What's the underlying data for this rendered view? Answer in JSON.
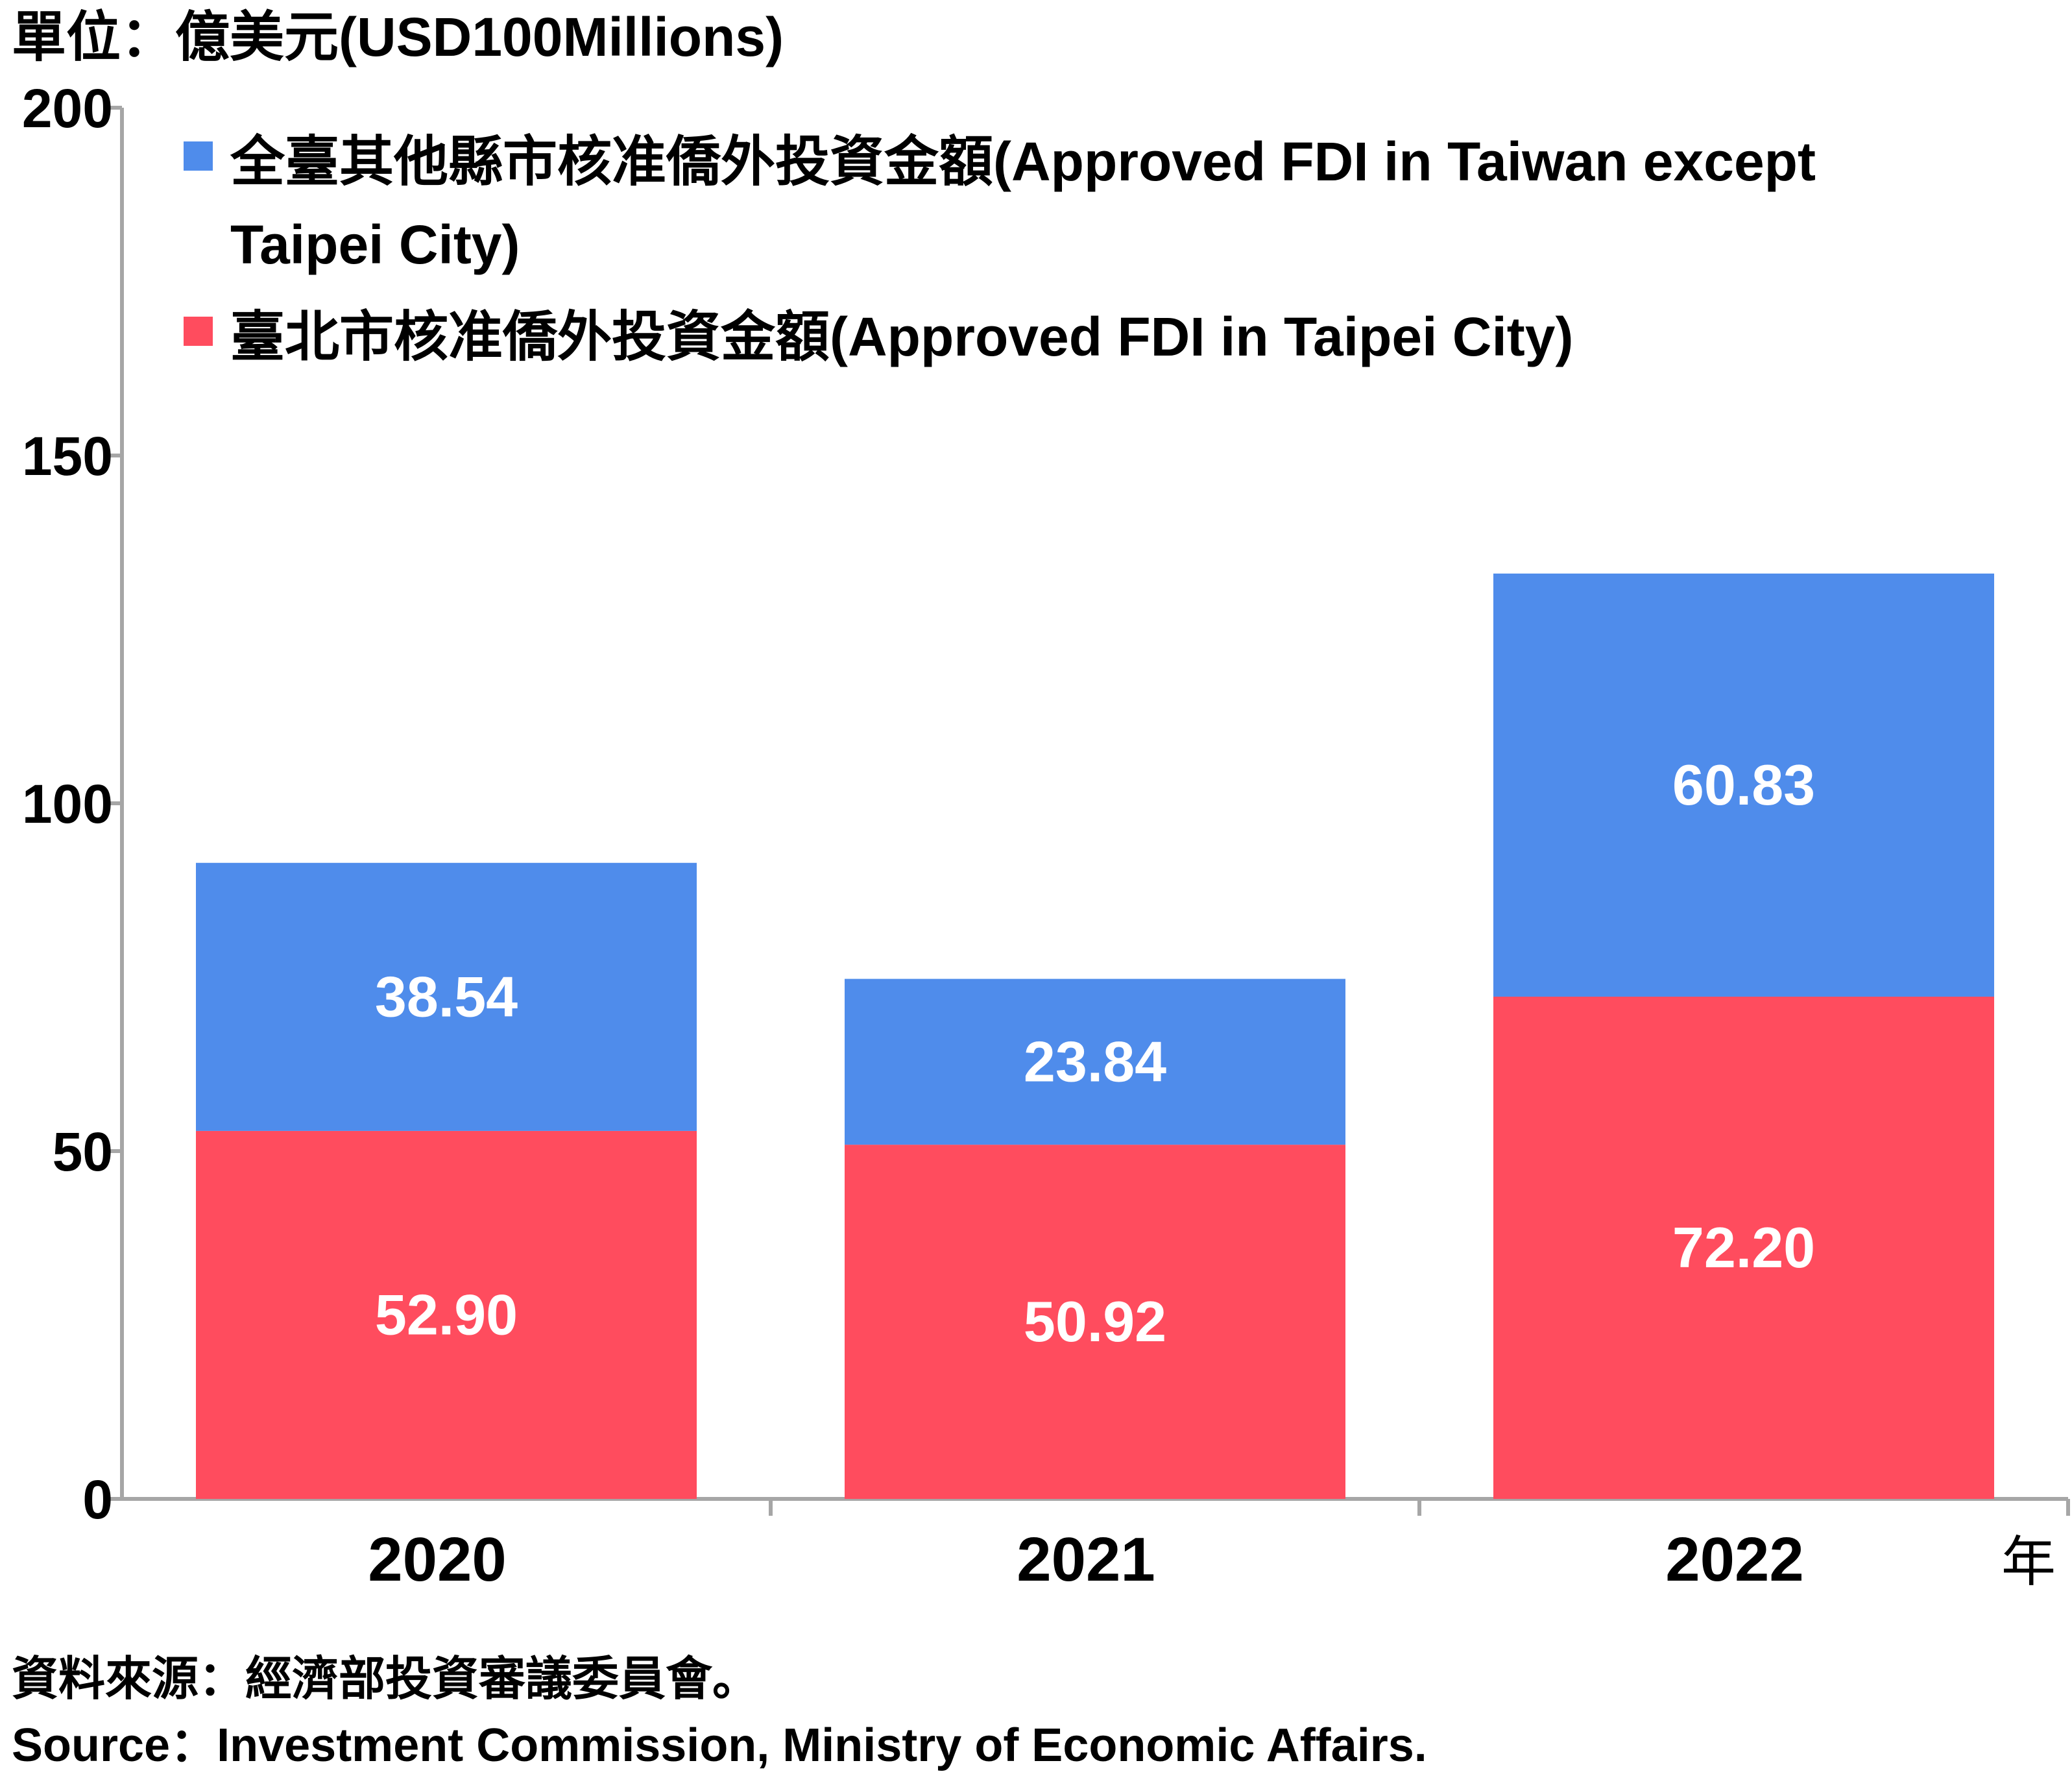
{
  "unit_label": "單位：億美元(USD100Millions)",
  "year_suffix": "年",
  "source_zh": "資料來源：經濟部投資審議委員會。",
  "source_en": "Source：Investment Commission, Ministry of Economic Affairs.",
  "chart_data": {
    "type": "bar",
    "stacked": true,
    "categories": [
      "2020",
      "2021",
      "2022"
    ],
    "series": [
      {
        "name": "臺北市核准僑外投資金額(Approved FDI in Taipei City)",
        "values": [
          52.9,
          50.92,
          72.2
        ],
        "labels": [
          "52.90",
          "50.92",
          "72.20"
        ],
        "color": "#FF4C5E"
      },
      {
        "name": "全臺其他縣市核准僑外投資金額(Approved FDI in Taiwan except Taipei City)",
        "values": [
          38.54,
          23.84,
          60.83
        ],
        "labels": [
          "38.54",
          "23.84",
          "60.83"
        ],
        "color": "#4F8CEB"
      }
    ],
    "legend": {
      "placement": "top-left",
      "entries": [
        {
          "lines": [
            "全臺其他縣市核准僑外投資金額(Approved FDI in Taiwan except",
            "Taipei City)"
          ],
          "color": "#4F8CEB"
        },
        {
          "lines": [
            "臺北市核准僑外投資金額(Approved FDI in Taipei City)"
          ],
          "color": "#FF4C5E"
        }
      ]
    },
    "ylim": [
      0,
      200
    ],
    "yticks": [
      "0",
      "50",
      "100",
      "150",
      "200"
    ],
    "ytick_values": [
      0,
      50,
      100,
      150,
      200
    ],
    "grid": false,
    "axis_color": "#A6A6A6"
  }
}
